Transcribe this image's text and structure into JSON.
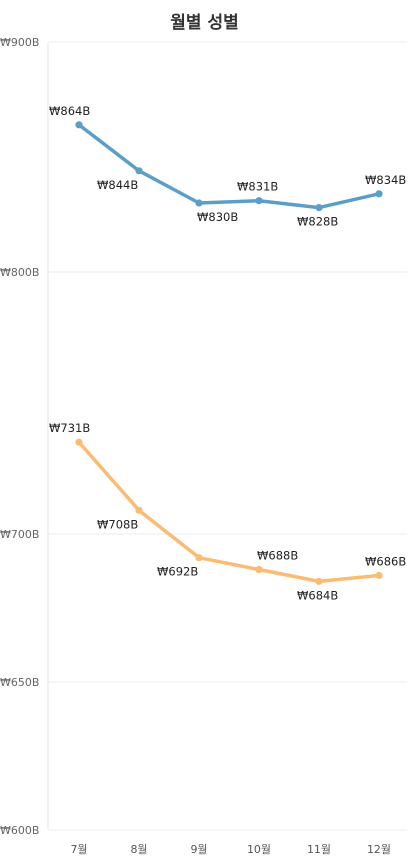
{
  "chart_data": {
    "type": "line",
    "title": "월별 성별",
    "categories": [
      "7월",
      "8월",
      "9월",
      "10월",
      "11월",
      "12월"
    ],
    "series": [
      {
        "color": "#5b9fc9",
        "values": [
          864,
          844,
          830,
          831,
          828,
          834
        ],
        "labels": [
          "₩864B",
          "₩844B",
          "₩830B",
          "₩831B",
          "₩828B",
          "₩834B"
        ]
      },
      {
        "color": "#fbbb72",
        "values": [
          731,
          708,
          692,
          688,
          684,
          686
        ],
        "labels": [
          "₩731B",
          "₩708B",
          "₩692B",
          "₩688B",
          "₩684B",
          "₩686B"
        ]
      }
    ],
    "y_axis": {
      "segments": [
        {
          "top": 900,
          "bottom": 800,
          "tick_labels": [
            "₩900B",
            "₩800B"
          ]
        },
        {
          "top": 750,
          "bottom": 600,
          "tick_labels": [
            "₩700B",
            "₩650B",
            "₩600B"
          ],
          "tick_values": [
            700,
            650,
            600
          ]
        }
      ]
    },
    "grid": true,
    "legend": "none"
  }
}
